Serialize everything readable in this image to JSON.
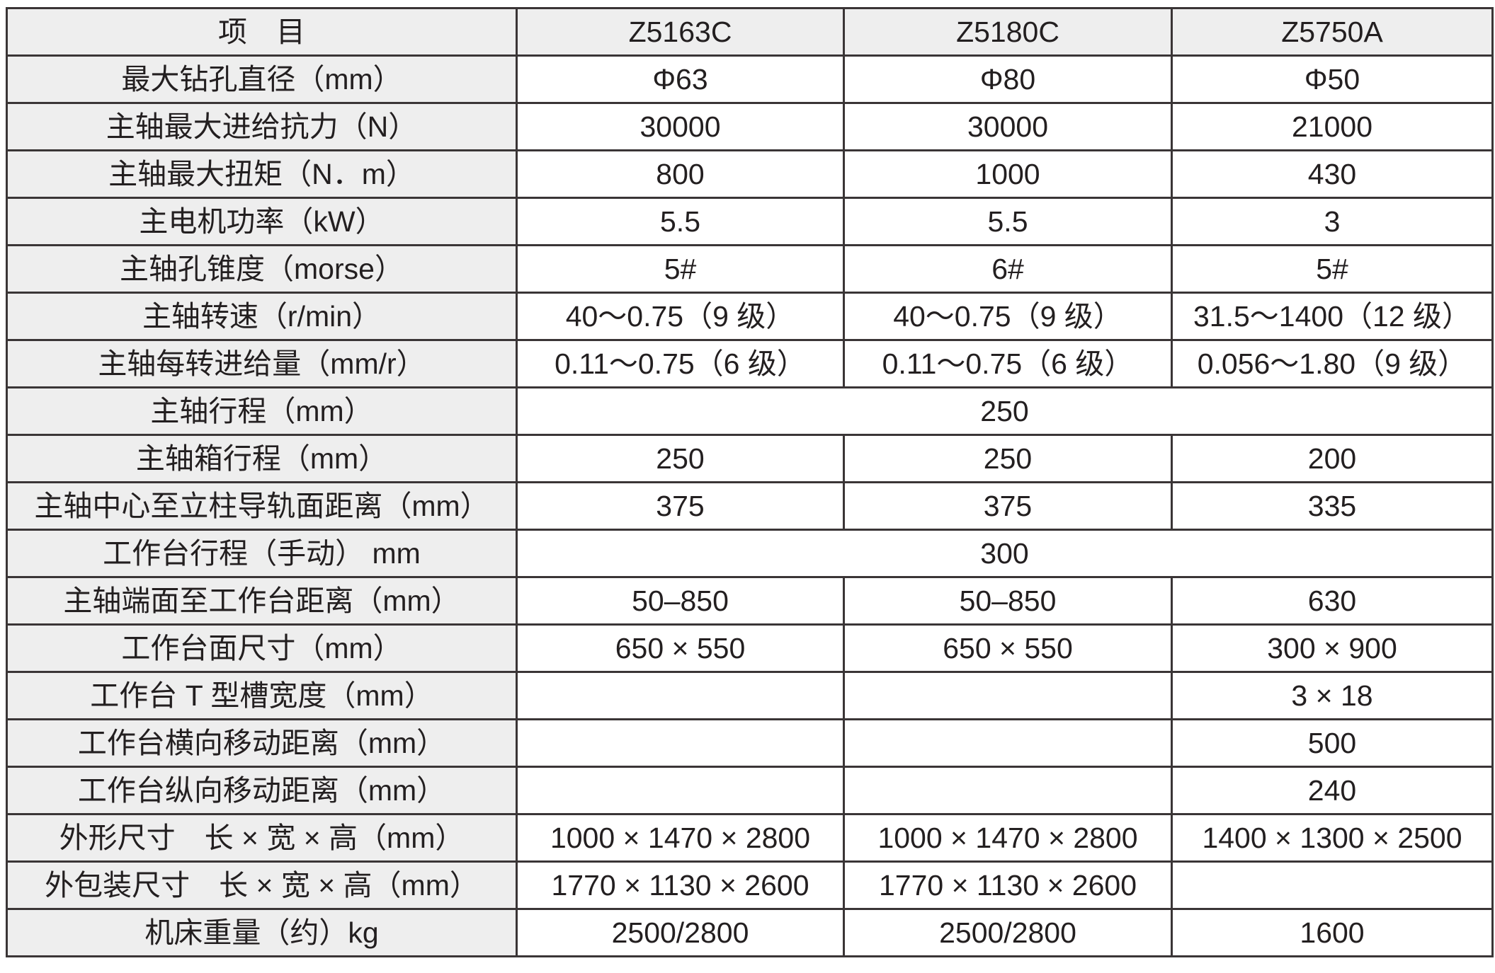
{
  "header": [
    "项　目",
    "Z5163C",
    "Z5180C",
    "Z5750A"
  ],
  "rows": [
    {
      "label": "最大钻孔直径（mm）",
      "values": [
        "Φ63",
        "Φ80",
        "Φ50"
      ]
    },
    {
      "label": "主轴最大进给抗力（N）",
      "values": [
        "30000",
        "30000",
        "21000"
      ]
    },
    {
      "label": "主轴最大扭矩（N．m）",
      "values": [
        "800",
        "1000",
        "430"
      ]
    },
    {
      "label": "主电机功率（kW）",
      "values": [
        "5.5",
        "5.5",
        "3"
      ]
    },
    {
      "label": "主轴孔锥度（morse）",
      "values": [
        "5#",
        "6#",
        "5#"
      ]
    },
    {
      "label": "主轴转速（r/min）",
      "values": [
        "40～0.75（9 级）",
        "40～0.75（9 级）",
        "31.5～1400（12 级）"
      ]
    },
    {
      "label": "主轴每转进给量（mm/r）",
      "values": [
        "0.11～0.75（6 级）",
        "0.11～0.75（6 级）",
        "0.056～1.80（9 级）"
      ]
    },
    {
      "label": "主轴行程（mm）",
      "merged": "250"
    },
    {
      "label": "主轴箱行程（mm）",
      "values": [
        "250",
        "250",
        "200"
      ]
    },
    {
      "label": "主轴中心至立柱导轨面距离（mm）",
      "values": [
        "375",
        "375",
        "335"
      ]
    },
    {
      "label": "工作台行程（手动） mm",
      "merged": "300"
    },
    {
      "label": "主轴端面至工作台距离（mm）",
      "values": [
        "50–850",
        "50–850",
        "630"
      ]
    },
    {
      "label": "工作台面尺寸（mm）",
      "values": [
        "650 × 550",
        "650 × 550",
        "300 × 900"
      ]
    },
    {
      "label": "工作台 T 型槽宽度（mm）",
      "values": [
        "",
        "",
        "3 × 18"
      ]
    },
    {
      "label": "工作台横向移动距离（mm）",
      "values": [
        "",
        "",
        "500"
      ]
    },
    {
      "label": "工作台纵向移动距离（mm）",
      "values": [
        "",
        "",
        "240"
      ]
    },
    {
      "label": "外形尺寸　长 × 宽 × 高（mm）",
      "values": [
        "1000 × 1470 × 2800",
        "1000 × 1470 × 2800",
        "1400 × 1300 × 2500"
      ]
    },
    {
      "label": "外包装尺寸　长 × 宽 × 高（mm）",
      "values": [
        "1770 × 1130 × 2600",
        "1770 × 1130 × 2600",
        ""
      ]
    },
    {
      "label": "机床重量（约）kg",
      "values": [
        "2500/2800",
        "2500/2800",
        "1600"
      ]
    }
  ]
}
